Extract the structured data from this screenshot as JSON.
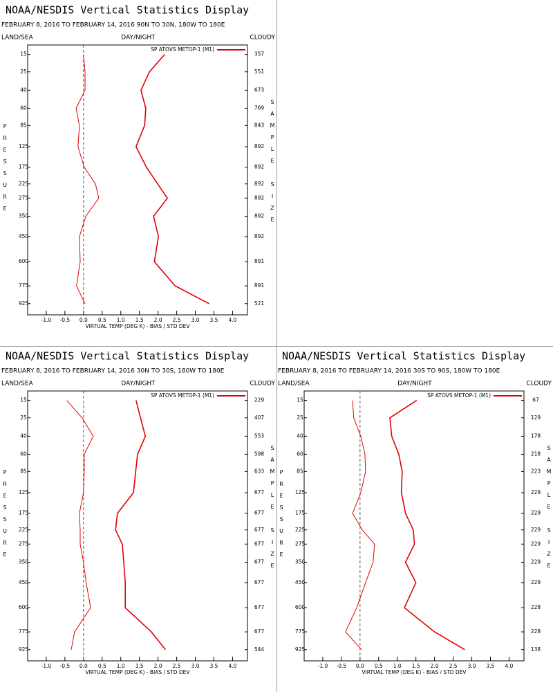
{
  "chart_data": [
    {
      "type": "line",
      "title": "NOAA/NESDIS Vertical Statistics Display",
      "subtitle": "FEBRUARY 8, 2016 TO FEBRUARY 14, 2016 90N TO 30N, 180W TO 180E",
      "left_label": "LAND/SEA",
      "center_label": "DAY/NIGHT",
      "right_label": "CLOUDY",
      "ylabel": "PRESSURE",
      "y2label": "SAMPLE SIZE",
      "xlabel": "VIRTUAL TEMP (DEG K) - BIAS / STD DEV",
      "legend": "SP ATOVS METOP-1 (M1)",
      "yscale": "power",
      "y": [
        15,
        25,
        40,
        60,
        85,
        125,
        175,
        225,
        275,
        350,
        450,
        600,
        775,
        925
      ],
      "sample_size": [
        357,
        551,
        673,
        769,
        843,
        892,
        892,
        892,
        892,
        892,
        892,
        891,
        891,
        521
      ],
      "series": [
        {
          "color": "#e00000",
          "line_width": 1,
          "values": [
            0.0,
            0.04,
            0.04,
            -0.2,
            -0.11,
            -0.15,
            0.02,
            0.32,
            0.41,
            0.06,
            -0.11,
            -0.09,
            -0.19,
            0.04
          ]
        },
        {
          "color": "#e00000",
          "line_width": 1.6,
          "values": [
            2.18,
            1.77,
            1.54,
            1.67,
            1.64,
            1.41,
            1.69,
            1.99,
            2.25,
            1.88,
            2.01,
            1.9,
            2.46,
            3.37
          ]
        }
      ],
      "xlim": [
        -1.5,
        4.4
      ],
      "ylim": [
        11,
        1030
      ],
      "xticks": [
        {
          "value": -1,
          "label": "-1.0"
        },
        -0.5,
        {
          "value": 0,
          "label": "0.0"
        },
        0.5,
        {
          "value": 1,
          "label": "1.0"
        },
        1.5,
        {
          "value": 2,
          "label": "2.0"
        },
        2.5,
        {
          "value": 3,
          "label": "3.0"
        },
        3.5,
        {
          "value": 4,
          "label": "4.0"
        }
      ],
      "yticks": [
        15,
        25,
        40,
        60,
        85,
        125,
        175,
        225,
        275,
        350,
        450,
        600,
        775,
        925
      ]
    },
    {
      "type": "line",
      "title": "NOAA/NESDIS Vertical Statistics Display",
      "subtitle": "FEBRUARY 8, 2016 TO FEBRUARY 14, 2016 30N TO 30S, 180W TO 180E",
      "left_label": "LAND/SEA",
      "center_label": "DAY/NIGHT",
      "right_label": "CLOUDY",
      "ylabel": "PRESSURE",
      "y2label": "SAMPLE SIZE",
      "xlabel": "VIRTUAL TEMP (DEG K) - BIAS / STD DEV",
      "legend": "SP ATOVS METOP-1 (M1)",
      "yscale": "power",
      "y": [
        15,
        25,
        40,
        60,
        85,
        125,
        175,
        225,
        275,
        350,
        450,
        600,
        775,
        925
      ],
      "sample_size": [
        229,
        407,
        553,
        598,
        633,
        677,
        677,
        677,
        677,
        677,
        677,
        677,
        677,
        544
      ],
      "series": [
        {
          "color": "#e00000",
          "line_width": 1,
          "values": [
            -0.45,
            -0.04,
            0.26,
            0.02,
            0.02,
            0.0,
            -0.11,
            -0.09,
            -0.09,
            0.0,
            0.07,
            0.19,
            -0.24,
            -0.33
          ]
        },
        {
          "color": "#e00000",
          "line_width": 1.6,
          "values": [
            1.41,
            1.53,
            1.66,
            1.45,
            1.4,
            1.34,
            0.91,
            0.86,
            1.04,
            1.08,
            1.12,
            1.12,
            1.82,
            2.2
          ]
        }
      ],
      "xlim": [
        -1.5,
        4.4
      ],
      "ylim": [
        11,
        1030
      ],
      "xticks": [
        {
          "value": -1,
          "label": "-1.0"
        },
        -0.5,
        {
          "value": 0,
          "label": "0.0"
        },
        0.5,
        {
          "value": 1,
          "label": "1.0"
        },
        1.5,
        {
          "value": 2,
          "label": "2.0"
        },
        2.5,
        {
          "value": 3,
          "label": "3.0"
        },
        3.5,
        {
          "value": 4,
          "label": "4.0"
        }
      ],
      "yticks": [
        15,
        25,
        40,
        60,
        85,
        125,
        175,
        225,
        275,
        350,
        450,
        600,
        775,
        925
      ]
    },
    {
      "type": "line",
      "title": "NOAA/NESDIS Vertical Statistics Display",
      "subtitle": "FEBRUARY 8, 2016 TO FEBRUARY 14, 2016 30S TO 90S, 180W TO 180E",
      "left_label": "LAND/SEA",
      "center_label": "DAY/NIGHT",
      "right_label": "CLOUDY",
      "ylabel": "PRESSURE",
      "y2label": "SAMPLE SIZE",
      "xlabel": "VIRTUAL TEMP (DEG K) - BIAS / STD DEV",
      "legend": "SP ATOVS METOP-1 (M1)",
      "yscale": "power",
      "y": [
        15,
        25,
        40,
        60,
        85,
        125,
        175,
        225,
        275,
        350,
        450,
        600,
        775,
        925
      ],
      "sample_size": [
        67,
        129,
        178,
        218,
        223,
        229,
        229,
        229,
        229,
        229,
        229,
        228,
        228,
        138
      ],
      "series": [
        {
          "color": "#e00000",
          "line_width": 1,
          "values": [
            -0.2,
            -0.17,
            0.02,
            0.13,
            0.15,
            0.02,
            -0.2,
            0.06,
            0.39,
            0.35,
            0.15,
            -0.09,
            -0.39,
            0.04
          ]
        },
        {
          "color": "#e00000",
          "line_width": 1.6,
          "values": [
            1.52,
            0.8,
            0.85,
            1.04,
            1.13,
            1.11,
            1.22,
            1.43,
            1.46,
            1.22,
            1.5,
            1.19,
            2.0,
            2.81
          ]
        }
      ],
      "xlim": [
        -1.5,
        4.4
      ],
      "ylim": [
        11,
        1030
      ],
      "xticks": [
        {
          "value": -1,
          "label": "-1.0"
        },
        -0.5,
        {
          "value": 0,
          "label": "0.0"
        },
        0.5,
        {
          "value": 1,
          "label": "1.0"
        },
        1.5,
        {
          "value": 2,
          "label": "2.0"
        },
        2.5,
        {
          "value": 3,
          "label": "3.0"
        },
        3.5,
        {
          "value": 4,
          "label": "4.0"
        }
      ],
      "yticks": [
        15,
        25,
        40,
        60,
        85,
        125,
        175,
        225,
        275,
        350,
        450,
        600,
        775,
        925
      ]
    }
  ]
}
